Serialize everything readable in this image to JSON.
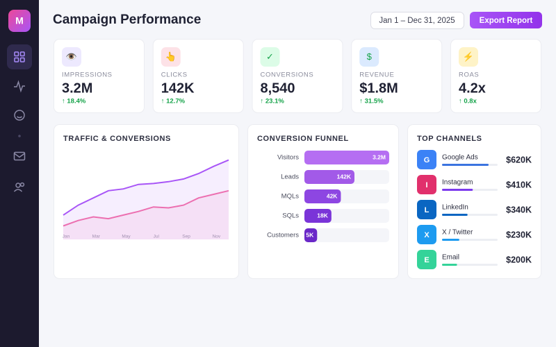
{
  "sidebar": {
    "logo": "M"
  },
  "header": {
    "title": "Campaign Performance",
    "date_range": "Jan 1 – Dec 31, 2025",
    "button": "Export Report"
  },
  "kpis": [
    {
      "icon": "👁️",
      "bg": "#ede9fe",
      "label": "IMPRESSIONS",
      "value": "3.2M",
      "change": "↑ 18.4%"
    },
    {
      "icon": "👆",
      "bg": "#fde2e7",
      "label": "CLICKS",
      "value": "142K",
      "change": "↑ 12.7%"
    },
    {
      "icon": "✓",
      "bg": "#dcfce7",
      "label": "CONVERSIONS",
      "value": "8,540",
      "change": "↑ 23.1%"
    },
    {
      "icon": "$",
      "bg": "#dbeafe",
      "label": "REVENUE",
      "value": "$1.8M",
      "change": "↑ 31.5%"
    },
    {
      "icon": "⚡",
      "bg": "#fef3c7",
      "label": "ROAS",
      "value": "4.2x",
      "change": "↑ 0.8x"
    }
  ],
  "chart_data": [
    {
      "type": "line",
      "title": "TRAFFIC & CONVERSIONS",
      "categories": [
        "Jan",
        null,
        "Mar",
        null,
        "May",
        null,
        "Jul",
        null,
        "Sep",
        null,
        "Nov",
        null
      ],
      "ylim": [
        0,
        100
      ],
      "series": [
        {
          "color": "#a855f7",
          "values": [
            27,
            38,
            46,
            54,
            56,
            61,
            62,
            64,
            67,
            73,
            81,
            88
          ]
        },
        {
          "color": "#ec6fb0",
          "values": [
            15,
            21,
            25,
            23,
            27,
            31,
            36,
            35,
            38,
            46,
            50,
            54
          ]
        }
      ]
    },
    {
      "type": "hbar",
      "title": "CONVERSION FUNNEL",
      "log": true,
      "xlim": [
        1600,
        3200000
      ],
      "categories": [
        "Visitors",
        "Leads",
        "MQLs",
        "SQLs",
        "Customers"
      ],
      "values": [
        3200000,
        142000,
        42000,
        18000,
        5000
      ],
      "value_labels": [
        "3.2M",
        "142K",
        "42K",
        "18K",
        "5K"
      ],
      "colors": [
        "#b56ef2",
        "#a25ae8",
        "#8d46e2",
        "#7a34d8",
        "#6a28c8"
      ]
    },
    {
      "type": "channels",
      "title": "TOP CHANNELS",
      "xlim": [
        0,
        740000
      ],
      "badges": [
        "G",
        "I",
        "L",
        "X",
        "E"
      ],
      "categories": [
        "Google Ads",
        "Instagram",
        "LinkedIn",
        "X / Twitter",
        "Email"
      ],
      "values": [
        620000,
        410000,
        340000,
        230000,
        200000
      ],
      "value_labels": [
        "$620K",
        "$410K",
        "$340K",
        "$230K",
        "$200K"
      ],
      "colors": [
        "#3b74e0",
        "#7c3aed",
        "#0a66c2",
        "#1d9bf0",
        "#34d399"
      ],
      "badge_colors": [
        "#3b82f6",
        "#e1306c",
        "#0a66c2",
        "#1d9bf0",
        "#34d399"
      ]
    }
  ]
}
